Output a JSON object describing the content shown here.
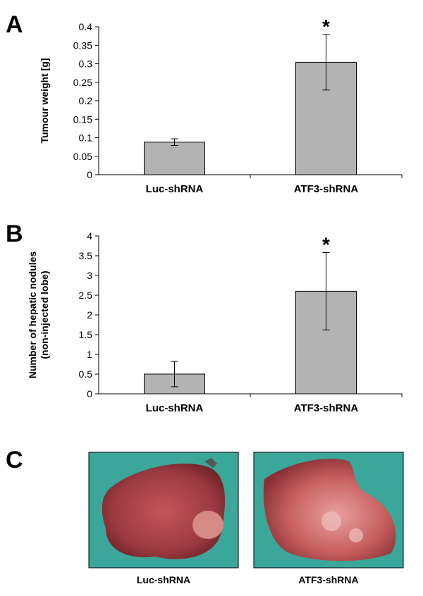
{
  "chart_data": [
    {
      "type": "bar",
      "panel_label": "A",
      "ylabel": [
        "Tumour weight [g]"
      ],
      "categories": [
        "Luc-shRNA",
        "ATF3-shRNA"
      ],
      "values": [
        0.088,
        0.304
      ],
      "errors": [
        0.009,
        0.075
      ],
      "markers": [
        null,
        "*"
      ],
      "color": "#b3b3b3",
      "ylim": [
        0,
        0.4
      ],
      "yticks": [
        0,
        0.05,
        0.1,
        0.15,
        0.2,
        0.25,
        0.3,
        0.35,
        0.4
      ]
    },
    {
      "type": "bar",
      "panel_label": "B",
      "ylabel": [
        "Number of hepatic nodules",
        "(non-injected lobe)"
      ],
      "categories": [
        "Luc-shRNA",
        "ATF3-shRNA"
      ],
      "values": [
        0.5,
        2.6
      ],
      "errors": [
        0.32,
        0.98
      ],
      "markers": [
        null,
        "*"
      ],
      "color": "#b3b3b3",
      "ylim": [
        0,
        4
      ],
      "yticks": [
        0,
        0.5,
        1,
        1.5,
        2,
        2.5,
        3,
        3.5,
        4
      ]
    }
  ],
  "photos": {
    "panel_label": "C",
    "captions": [
      "Luc-shRNA",
      "ATF3-shRNA"
    ]
  }
}
